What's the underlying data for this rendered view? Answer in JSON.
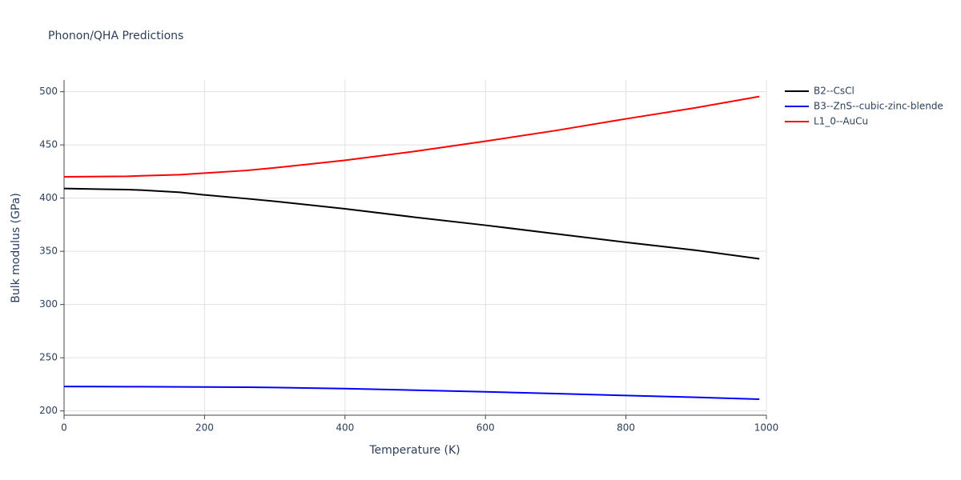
{
  "chart_data": {
    "type": "line",
    "title": "Phonon/QHA Predictions",
    "x_label": "Temperature (K)",
    "y_label": "Bulk modulus (GPa)",
    "x": [
      0,
      90,
      110,
      165,
      200,
      260,
      300,
      400,
      500,
      600,
      700,
      800,
      900,
      990
    ],
    "series": [
      {
        "name": "B2--CsCl",
        "color": "#000000",
        "values": [
          409,
          408,
          407.5,
          405.5,
          403,
          399.5,
          397,
          390,
          382,
          374.5,
          366.5,
          358.5,
          351,
          343
        ]
      },
      {
        "name": "B3--ZnS--cubic-zinc-blende",
        "color": "#0000ff",
        "values": [
          223,
          222.8,
          222.8,
          222.6,
          222.5,
          222.3,
          222,
          221,
          219.5,
          218,
          216.3,
          214.5,
          212.8,
          211
        ]
      },
      {
        "name": "L1_0--AuCu",
        "color": "#ff0000",
        "values": [
          420,
          420.5,
          421,
          422,
          423.5,
          426,
          428.5,
          435.5,
          444,
          453.5,
          463.5,
          474.5,
          485,
          495.5
        ]
      }
    ],
    "xlim": [
      0,
      1000
    ],
    "xticks": [
      0,
      200,
      400,
      600,
      800,
      1000
    ],
    "ylim": [
      196,
      511
    ],
    "yticks": [
      200,
      250,
      300,
      350,
      400,
      450,
      500
    ],
    "grid": true,
    "legend": "top-right"
  }
}
